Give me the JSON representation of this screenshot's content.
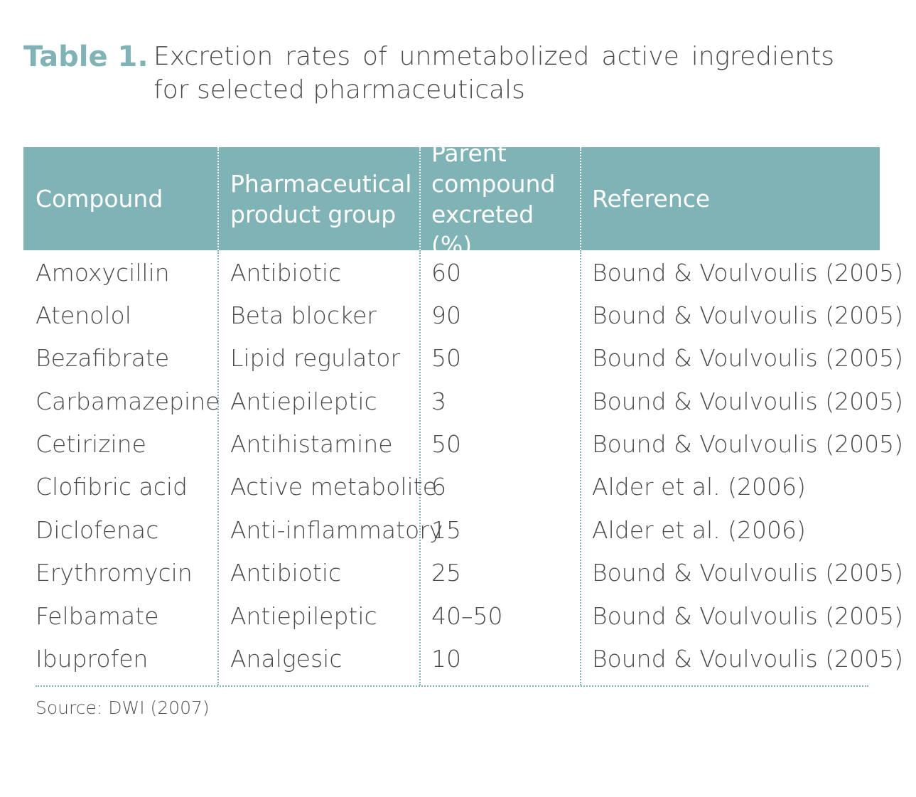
{
  "title": {
    "label": "Table 1.",
    "text": "Excretion rates of unmetabolized active ingredients for selected pharmaceuticals"
  },
  "table": {
    "headers": [
      "Compound",
      "Pharmaceutical product group",
      "Parent compound excreted (%)",
      "Reference"
    ],
    "rows": [
      [
        "Amoxycillin",
        "Antibiotic",
        "60",
        "Bound & Voulvoulis (2005)"
      ],
      [
        "Atenolol",
        "Beta blocker",
        "90",
        "Bound & Voulvoulis (2005)"
      ],
      [
        "Bezafibrate",
        "Lipid regulator",
        "50",
        "Bound & Voulvoulis (2005)"
      ],
      [
        "Carbamazepine",
        "Antiepileptic",
        "3",
        "Bound & Voulvoulis (2005)"
      ],
      [
        "Cetirizine",
        "Antihistamine",
        "50",
        "Bound & Voulvoulis (2005)"
      ],
      [
        "Clofibric acid",
        "Active metabolite",
        "6",
        "Alder et al. (2006)"
      ],
      [
        "Diclofenac",
        "Anti-inflammatory",
        "15",
        "Alder et al. (2006)"
      ],
      [
        "Erythromycin",
        "Antibiotic",
        "25",
        "Bound & Voulvoulis (2005)"
      ],
      [
        "Felbamate",
        "Antiepileptic",
        "40–50",
        "Bound & Voulvoulis (2005)"
      ],
      [
        "Ibuprofen",
        "Analgesic",
        "10",
        "Bound & Voulvoulis (2005)"
      ]
    ]
  },
  "source": "Source: DWI (2007)",
  "colors": {
    "accent": "#7fb3b5",
    "text": "#4a4a4a",
    "header_text": "#ffffff"
  }
}
